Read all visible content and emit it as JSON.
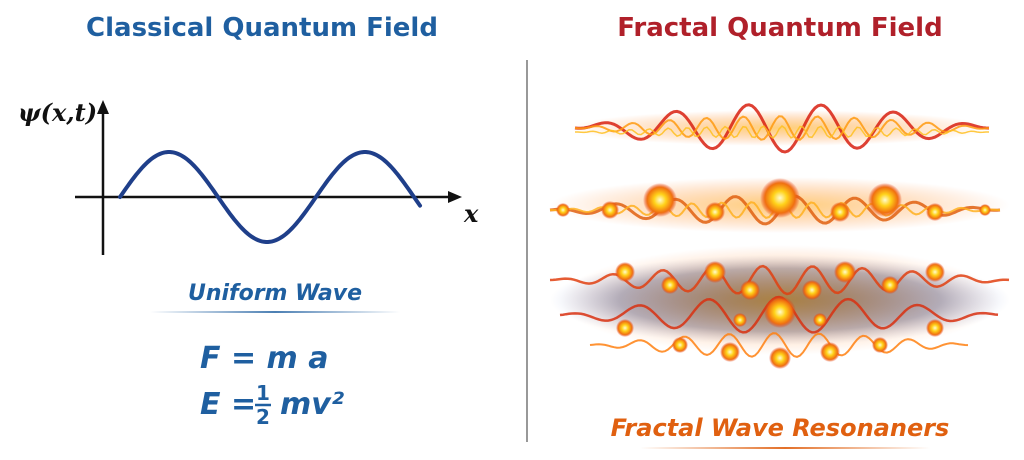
{
  "left": {
    "title": "Classical Quantum Field",
    "y_axis_label": "ψ(x,t)",
    "x_axis_label": "x",
    "caption": "Uniform Wave",
    "equation_1": "F = m a",
    "equation_2": {
      "lhs": "E =",
      "numerator": "1",
      "denominator": "2",
      "rhs": "mv²"
    }
  },
  "right": {
    "title": "Fractal Quantum Field",
    "caption": "Fractal Wave Resonaners"
  }
}
